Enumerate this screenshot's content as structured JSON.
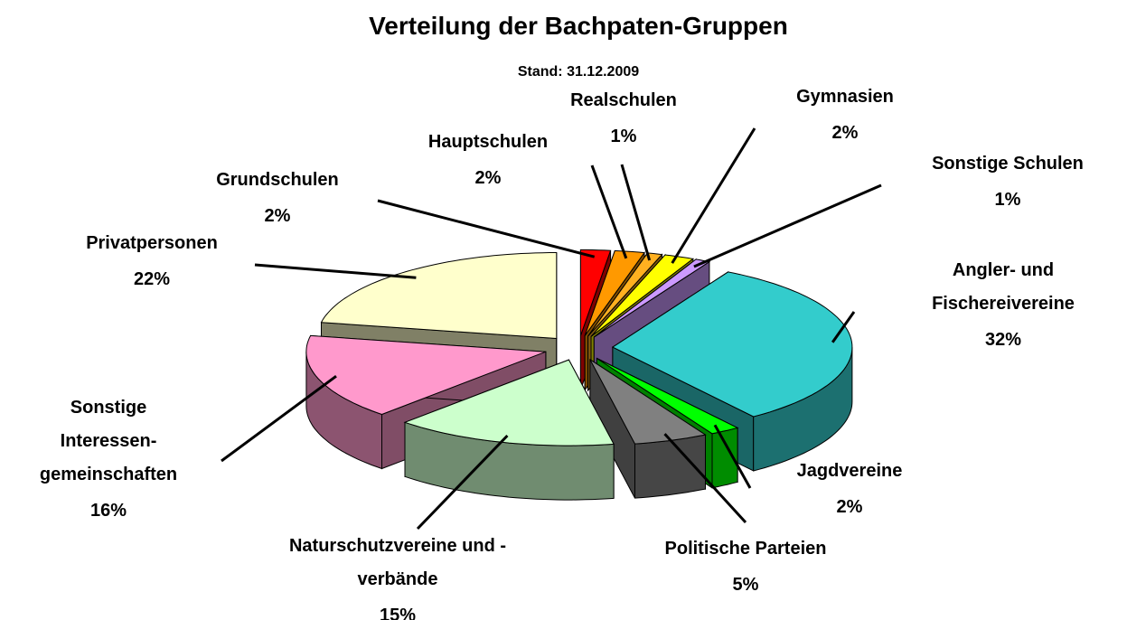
{
  "chart_data": {
    "type": "pie3d",
    "title": "Verteilung der Bachpaten-Gruppen",
    "subtitle": "Stand: 31.12.2009",
    "categories": [
      "Grundschulen",
      "Hauptschulen",
      "Realschulen",
      "Gymnasien",
      "Sonstige Schulen",
      "Angler- und\nFischereivereine",
      "Jagdvereine",
      "Politische Parteien",
      "Naturschutzvereine und -\nverbände",
      "Sonstige\nInteressen-\ngemeinschaften",
      "Privatpersonen"
    ],
    "values": [
      2,
      2,
      1,
      2,
      1,
      32,
      2,
      5,
      15,
      16,
      22
    ],
    "value_labels": [
      "2%",
      "2%",
      "1%",
      "2%",
      "1%",
      "32%",
      "2%",
      "5%",
      "15%",
      "16%",
      "22%"
    ],
    "colors": [
      "#ff0000",
      "#ff9900",
      "#ffb020",
      "#ffff00",
      "#cc99ff",
      "#33cccc",
      "#00ff00",
      "#808080",
      "#ccffcc",
      "#ff99cc",
      "#ffffcc"
    ]
  }
}
